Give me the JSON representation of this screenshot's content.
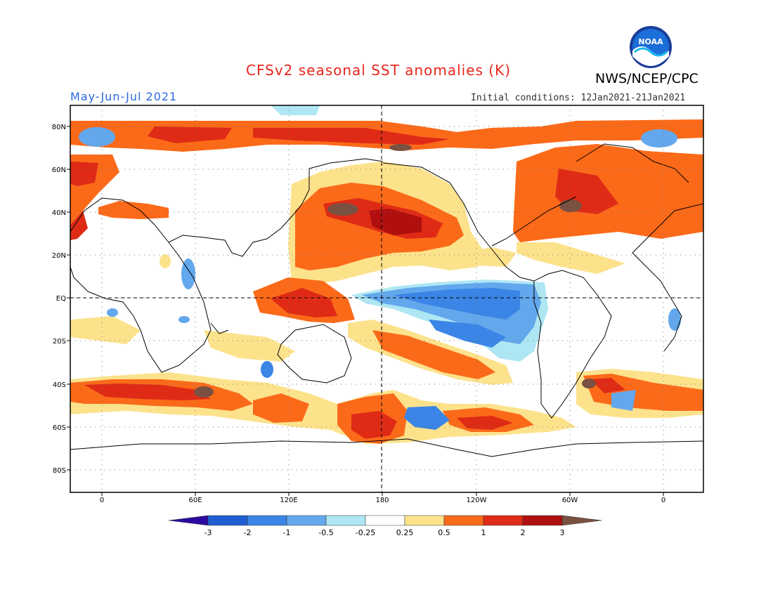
{
  "header": {
    "title": "CFSv2 seasonal SST anomalies (K)",
    "agency": "NWS/NCEP/CPC",
    "logo_text": "NOAA",
    "season": "May-Jun-Jul 2021",
    "initial_conditions": "Initial conditions: 12Jan2021-21Jan2021"
  },
  "map": {
    "projection": "cylindrical equidistant",
    "lon_labels": [
      "0",
      "60E",
      "120E",
      "180",
      "120W",
      "60W",
      "0"
    ],
    "lat_labels": [
      "80N",
      "60N",
      "40N",
      "20N",
      "EQ",
      "20S",
      "40S",
      "60S",
      "80S"
    ],
    "grid": "dotted",
    "reference_lines": [
      "EQ",
      "180"
    ]
  },
  "colorbar": {
    "ticks": [
      "-3",
      "-2",
      "-1",
      "-0.5",
      "-0.25",
      "0.25",
      "0.5",
      "1",
      "2",
      "3"
    ],
    "colors": [
      "#2b0ca0",
      "#1f5fd2",
      "#3a85e6",
      "#63a7ec",
      "#aee7f3",
      "#ffffff",
      "#fde28c",
      "#fb6a19",
      "#df2b16",
      "#b00f0f",
      "#7a5040"
    ]
  }
}
